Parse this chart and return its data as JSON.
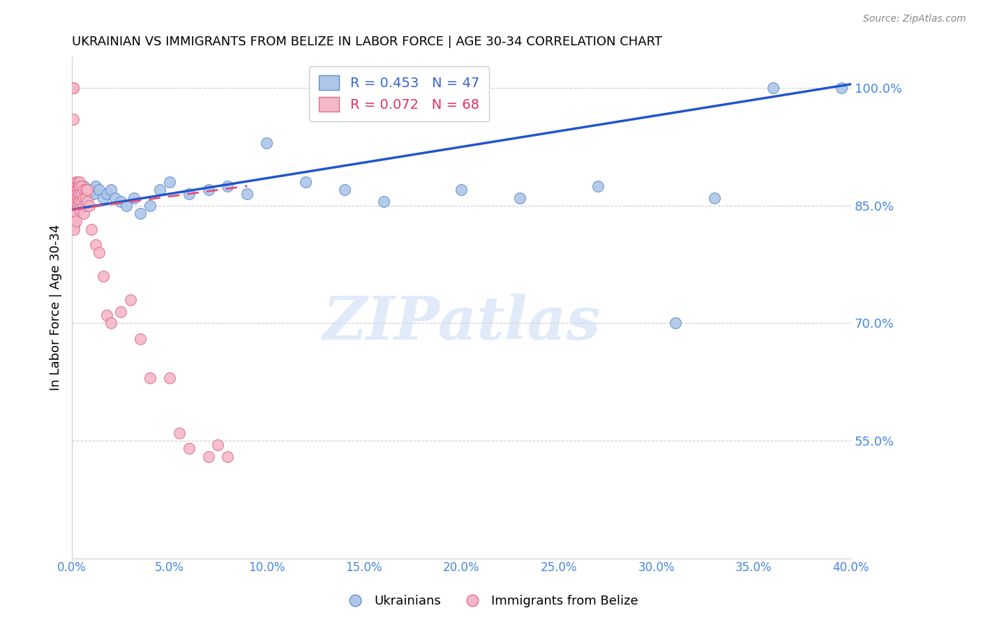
{
  "title": "UKRAINIAN VS IMMIGRANTS FROM BELIZE IN LABOR FORCE | AGE 30-34 CORRELATION CHART",
  "source": "Source: ZipAtlas.com",
  "ylabel": "In Labor Force | Age 30-34",
  "xlim": [
    0.0,
    0.4
  ],
  "ylim": [
    0.4,
    1.04
  ],
  "yticks": [
    0.55,
    0.7,
    0.85,
    1.0
  ],
  "xticks": [
    0.0,
    0.05,
    0.1,
    0.15,
    0.2,
    0.25,
    0.3,
    0.35,
    0.4
  ],
  "blue_R": 0.453,
  "blue_N": 47,
  "pink_R": 0.072,
  "pink_N": 68,
  "blue_color": "#aec6e8",
  "pink_color": "#f5b8c8",
  "blue_edge": "#6090cc",
  "pink_edge": "#e07090",
  "trend_blue": "#2255cc",
  "trend_pink": "#e0507a",
  "legend_blue": "Ukrainians",
  "legend_pink": "Immigrants from Belize",
  "watermark": "ZIPatlas",
  "blue_trend_x0": 0.0,
  "blue_trend_y0": 0.845,
  "blue_trend_x1": 0.4,
  "blue_trend_y1": 1.005,
  "pink_trend_x0": 0.0,
  "pink_trend_y0": 0.845,
  "pink_trend_x1": 0.09,
  "pink_trend_y1": 0.875,
  "blue_x": [
    0.001,
    0.001,
    0.002,
    0.002,
    0.002,
    0.003,
    0.003,
    0.003,
    0.004,
    0.004,
    0.005,
    0.005,
    0.006,
    0.006,
    0.007,
    0.008,
    0.009,
    0.01,
    0.011,
    0.012,
    0.014,
    0.016,
    0.018,
    0.02,
    0.022,
    0.025,
    0.028,
    0.032,
    0.035,
    0.04,
    0.045,
    0.05,
    0.06,
    0.07,
    0.08,
    0.09,
    0.1,
    0.12,
    0.14,
    0.16,
    0.2,
    0.23,
    0.27,
    0.31,
    0.33,
    0.36,
    0.395
  ],
  "blue_y": [
    0.875,
    0.87,
    0.875,
    0.87,
    0.865,
    0.88,
    0.875,
    0.87,
    0.875,
    0.87,
    0.875,
    0.87,
    0.875,
    0.865,
    0.86,
    0.87,
    0.865,
    0.87,
    0.865,
    0.875,
    0.87,
    0.86,
    0.865,
    0.87,
    0.86,
    0.855,
    0.85,
    0.86,
    0.84,
    0.85,
    0.87,
    0.88,
    0.865,
    0.87,
    0.875,
    0.865,
    0.93,
    0.88,
    0.87,
    0.855,
    0.87,
    0.86,
    0.875,
    0.7,
    0.86,
    1.0,
    1.0
  ],
  "pink_x": [
    0.0005,
    0.0005,
    0.0005,
    0.001,
    0.001,
    0.001,
    0.001,
    0.001,
    0.001,
    0.001,
    0.001,
    0.001,
    0.001,
    0.001,
    0.001,
    0.0015,
    0.0015,
    0.002,
    0.002,
    0.002,
    0.002,
    0.002,
    0.002,
    0.002,
    0.002,
    0.002,
    0.002,
    0.003,
    0.003,
    0.003,
    0.003,
    0.003,
    0.003,
    0.003,
    0.004,
    0.004,
    0.004,
    0.004,
    0.004,
    0.005,
    0.005,
    0.005,
    0.006,
    0.006,
    0.006,
    0.006,
    0.007,
    0.007,
    0.007,
    0.008,
    0.008,
    0.009,
    0.01,
    0.012,
    0.014,
    0.016,
    0.018,
    0.02,
    0.025,
    0.03,
    0.035,
    0.04,
    0.05,
    0.055,
    0.06,
    0.07,
    0.075,
    0.08
  ],
  "pink_y": [
    1.0,
    1.0,
    0.96,
    0.87,
    0.87,
    0.86,
    0.855,
    0.855,
    0.85,
    0.845,
    0.84,
    0.835,
    0.83,
    0.825,
    0.82,
    0.87,
    0.865,
    0.88,
    0.875,
    0.87,
    0.865,
    0.86,
    0.855,
    0.85,
    0.845,
    0.84,
    0.83,
    0.88,
    0.875,
    0.87,
    0.865,
    0.86,
    0.855,
    0.85,
    0.88,
    0.875,
    0.865,
    0.855,
    0.845,
    0.875,
    0.865,
    0.855,
    0.87,
    0.86,
    0.85,
    0.84,
    0.87,
    0.86,
    0.85,
    0.87,
    0.855,
    0.85,
    0.82,
    0.8,
    0.79,
    0.76,
    0.71,
    0.7,
    0.715,
    0.73,
    0.68,
    0.63,
    0.63,
    0.56,
    0.54,
    0.53,
    0.545,
    0.53
  ]
}
